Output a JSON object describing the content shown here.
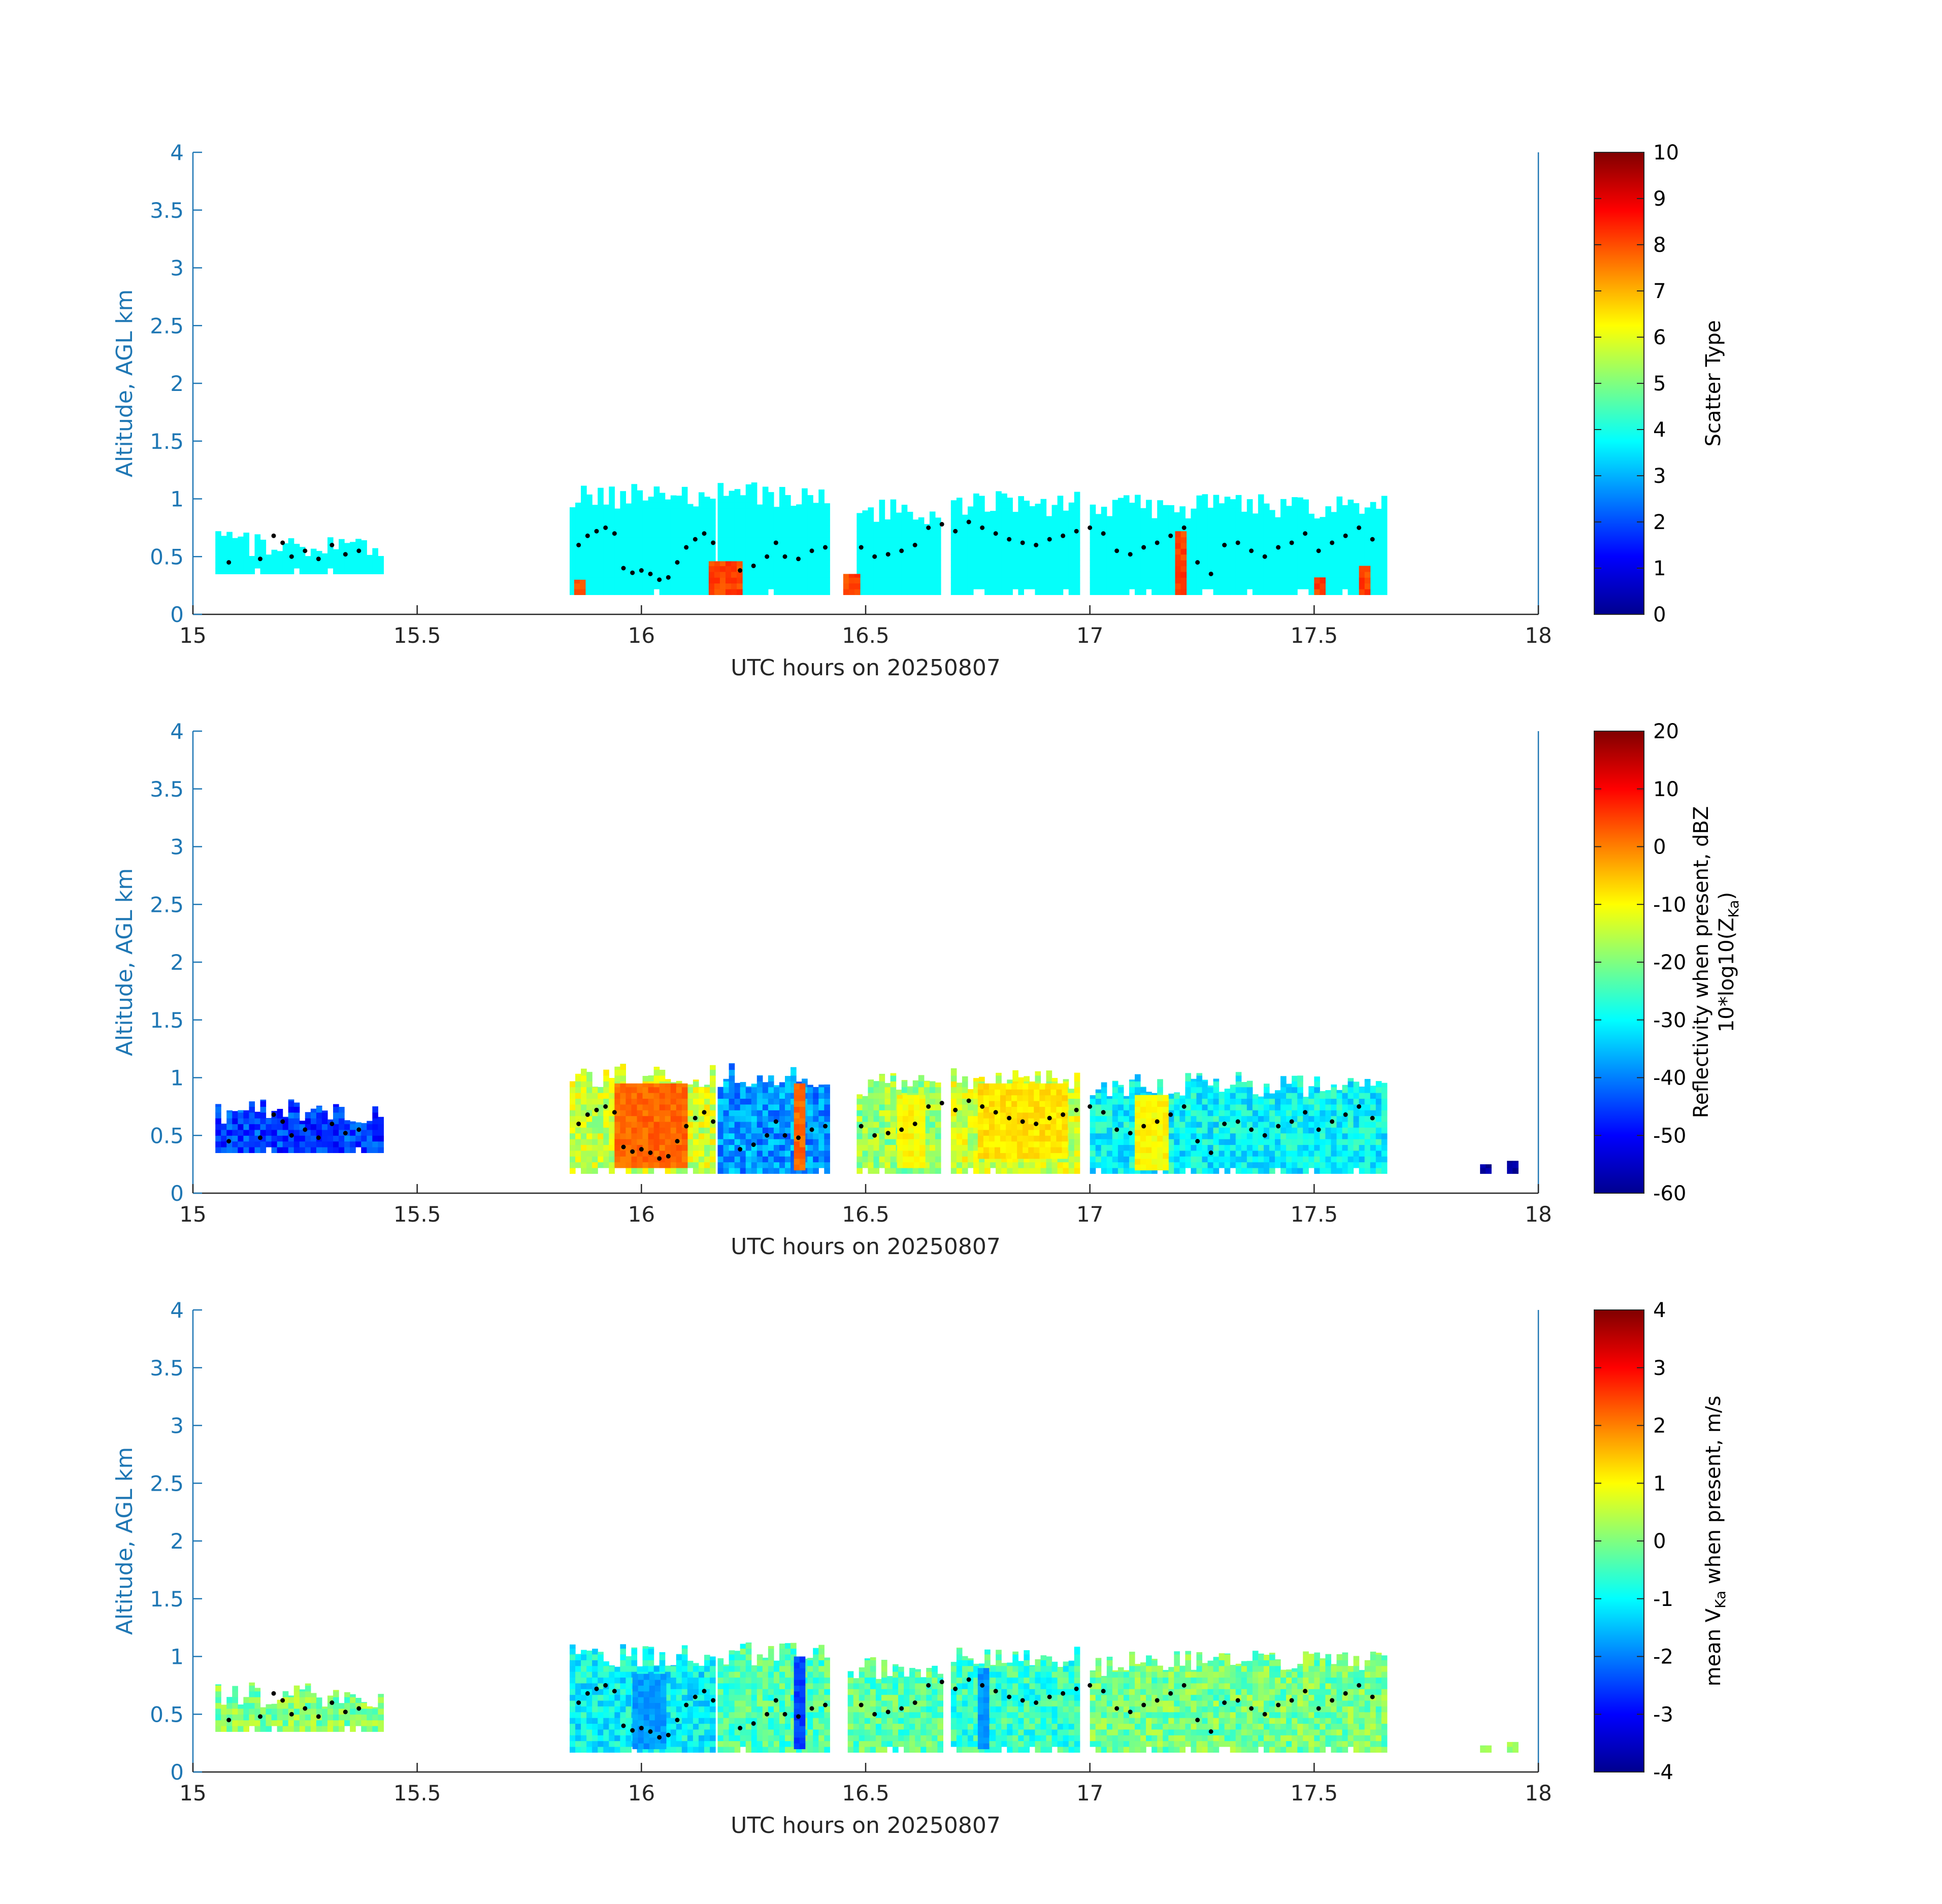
{
  "figure": {
    "xlabel_prefix": "UTC hours on",
    "date": "20250807",
    "ylabel": "Altitude, AGL km",
    "x_ticks": [
      "15",
      "15.5",
      "16",
      "16.5",
      "17",
      "17.5",
      "18"
    ],
    "y_ticks": [
      "0",
      "0.5",
      "1",
      "1.5",
      "2",
      "2.5",
      "3",
      "3.5",
      "4"
    ],
    "colors": {
      "y_axis": "#1f77b4",
      "x_axis": "#262626",
      "dots": "#000000"
    }
  },
  "chart_data": [
    {
      "type": "heatmap",
      "xlabel": "UTC hours on 20250807",
      "ylabel": "Altitude, AGL km",
      "xlim": [
        15,
        18
      ],
      "ylim": [
        0,
        4
      ],
      "colorbar": {
        "label": "Scatter Type",
        "range": [
          0,
          10
        ],
        "ticks": [
          "0",
          "1",
          "2",
          "3",
          "4",
          "5",
          "6",
          "7",
          "8",
          "9",
          "10"
        ]
      },
      "segments": [
        {
          "x": [
            15.05,
            15.42
          ],
          "base": 0.35,
          "top": 0.72,
          "value": 3.8
        },
        {
          "x": [
            15.84,
            16.17
          ],
          "base": 0.17,
          "top": 1.13,
          "value": 3.8
        },
        {
          "x": [
            16.17,
            16.42
          ],
          "base": 0.17,
          "top": 1.15,
          "value": 3.8
        },
        {
          "x": [
            16.48,
            16.67
          ],
          "base": 0.17,
          "top": 1.0,
          "value": 3.8
        },
        {
          "x": [
            16.69,
            16.98
          ],
          "base": 0.17,
          "top": 1.07,
          "value": 3.8
        },
        {
          "x": [
            17.0,
            17.66
          ],
          "base": 0.17,
          "top": 1.05,
          "value": 3.8
        }
      ],
      "accents": [
        {
          "x": [
            15.85,
            15.87
          ],
          "base": 0.17,
          "top": 0.3,
          "value": 8.1
        },
        {
          "x": [
            16.15,
            16.22
          ],
          "base": 0.17,
          "top": 0.46,
          "value": 8.1
        },
        {
          "x": [
            16.45,
            16.49
          ],
          "base": 0.17,
          "top": 0.35,
          "value": 8.1
        },
        {
          "x": [
            17.19,
            17.21
          ],
          "base": 0.17,
          "top": 0.72,
          "value": 8.1
        },
        {
          "x": [
            17.5,
            17.52
          ],
          "base": 0.17,
          "top": 0.32,
          "value": 8.1
        },
        {
          "x": [
            17.6,
            17.62
          ],
          "base": 0.17,
          "top": 0.42,
          "value": 8.1
        }
      ],
      "cloud_top_dots": {
        "x": [
          15.08,
          15.15,
          15.18,
          15.2,
          15.22,
          15.25,
          15.28,
          15.31,
          15.34,
          15.37,
          15.86,
          15.88,
          15.9,
          15.92,
          15.94,
          15.96,
          15.98,
          16.0,
          16.02,
          16.04,
          16.06,
          16.08,
          16.1,
          16.12,
          16.14,
          16.16,
          16.22,
          16.25,
          16.28,
          16.3,
          16.32,
          16.35,
          16.38,
          16.41,
          16.49,
          16.52,
          16.55,
          16.58,
          16.61,
          16.64,
          16.67,
          16.7,
          16.73,
          16.76,
          16.79,
          16.82,
          16.85,
          16.88,
          16.91,
          16.94,
          16.97,
          17.0,
          17.03,
          17.06,
          17.09,
          17.12,
          17.15,
          17.18,
          17.21,
          17.24,
          17.27,
          17.3,
          17.33,
          17.36,
          17.39,
          17.42,
          17.45,
          17.48,
          17.51,
          17.54,
          17.57,
          17.6,
          17.63
        ],
        "y": [
          0.45,
          0.48,
          0.68,
          0.62,
          0.5,
          0.55,
          0.48,
          0.6,
          0.52,
          0.55,
          0.6,
          0.68,
          0.72,
          0.75,
          0.7,
          0.4,
          0.36,
          0.38,
          0.35,
          0.3,
          0.32,
          0.45,
          0.58,
          0.65,
          0.7,
          0.62,
          0.38,
          0.42,
          0.5,
          0.62,
          0.5,
          0.48,
          0.55,
          0.58,
          0.58,
          0.5,
          0.52,
          0.55,
          0.6,
          0.75,
          0.78,
          0.72,
          0.8,
          0.75,
          0.7,
          0.65,
          0.62,
          0.6,
          0.65,
          0.68,
          0.72,
          0.75,
          0.7,
          0.55,
          0.52,
          0.58,
          0.62,
          0.68,
          0.75,
          0.45,
          0.35,
          0.6,
          0.62,
          0.55,
          0.5,
          0.58,
          0.62,
          0.7,
          0.55,
          0.62,
          0.68,
          0.75,
          0.65
        ]
      }
    },
    {
      "type": "heatmap",
      "xlabel": "UTC hours on 20250807",
      "ylabel": "Altitude, AGL km",
      "xlim": [
        15,
        18
      ],
      "ylim": [
        0,
        4
      ],
      "colorbar": {
        "label": "Reflectivity when present, dBZ",
        "label_line2_prefix": "10*log10(Z",
        "label_line2_sub": "Ka",
        "label_line2_suffix": ")",
        "range": [
          -60,
          20
        ],
        "ticks": [
          "-60",
          "-50",
          "-40",
          "-30",
          "-20",
          "-10",
          "0",
          "10",
          "20"
        ]
      },
      "segments": [
        {
          "x": [
            15.05,
            15.42
          ],
          "base": 0.35,
          "top": 0.82,
          "value": -45
        },
        {
          "x": [
            15.84,
            16.17
          ],
          "base": 0.17,
          "top": 1.13,
          "value": -14
        },
        {
          "x": [
            16.17,
            16.42
          ],
          "base": 0.17,
          "top": 1.13,
          "value": -38
        },
        {
          "x": [
            16.48,
            16.67
          ],
          "base": 0.17,
          "top": 1.05,
          "value": -18
        },
        {
          "x": [
            16.69,
            16.98
          ],
          "base": 0.17,
          "top": 1.1,
          "value": -14
        },
        {
          "x": [
            17.0,
            17.66
          ],
          "base": 0.17,
          "top": 1.05,
          "value": -30
        }
      ],
      "accents": [
        {
          "x": [
            15.94,
            16.1
          ],
          "base": 0.22,
          "top": 0.95,
          "value": 2
        },
        {
          "x": [
            16.34,
            16.37
          ],
          "base": 0.2,
          "top": 0.95,
          "value": 2
        },
        {
          "x": [
            16.57,
            16.63
          ],
          "base": 0.22,
          "top": 0.85,
          "value": -10
        },
        {
          "x": [
            16.75,
            16.95
          ],
          "base": 0.3,
          "top": 0.95,
          "value": -8
        },
        {
          "x": [
            17.1,
            17.18
          ],
          "base": 0.2,
          "top": 0.85,
          "value": -10
        },
        {
          "x": [
            17.87,
            17.89
          ],
          "base": 0.17,
          "top": 0.25,
          "value": -58
        },
        {
          "x": [
            17.93,
            17.95
          ],
          "base": 0.17,
          "top": 0.28,
          "value": -58
        }
      ],
      "cloud_top_dots": {
        "x": [
          15.08,
          15.15,
          15.18,
          15.2,
          15.22,
          15.25,
          15.28,
          15.31,
          15.34,
          15.37,
          15.86,
          15.88,
          15.9,
          15.92,
          15.94,
          15.96,
          15.98,
          16.0,
          16.02,
          16.04,
          16.06,
          16.08,
          16.1,
          16.12,
          16.14,
          16.16,
          16.22,
          16.25,
          16.28,
          16.3,
          16.32,
          16.35,
          16.38,
          16.41,
          16.49,
          16.52,
          16.55,
          16.58,
          16.61,
          16.64,
          16.67,
          16.7,
          16.73,
          16.76,
          16.79,
          16.82,
          16.85,
          16.88,
          16.91,
          16.94,
          16.97,
          17.0,
          17.03,
          17.06,
          17.09,
          17.12,
          17.15,
          17.18,
          17.21,
          17.24,
          17.27,
          17.3,
          17.33,
          17.36,
          17.39,
          17.42,
          17.45,
          17.48,
          17.51,
          17.54,
          17.57,
          17.6,
          17.63
        ],
        "y": [
          0.45,
          0.48,
          0.68,
          0.62,
          0.5,
          0.55,
          0.48,
          0.6,
          0.52,
          0.55,
          0.6,
          0.68,
          0.72,
          0.75,
          0.7,
          0.4,
          0.36,
          0.38,
          0.35,
          0.3,
          0.32,
          0.45,
          0.58,
          0.65,
          0.7,
          0.62,
          0.38,
          0.42,
          0.5,
          0.62,
          0.5,
          0.48,
          0.55,
          0.58,
          0.58,
          0.5,
          0.52,
          0.55,
          0.6,
          0.75,
          0.78,
          0.72,
          0.8,
          0.75,
          0.7,
          0.65,
          0.62,
          0.6,
          0.65,
          0.68,
          0.72,
          0.75,
          0.7,
          0.55,
          0.52,
          0.58,
          0.62,
          0.68,
          0.75,
          0.45,
          0.35,
          0.6,
          0.62,
          0.55,
          0.5,
          0.58,
          0.62,
          0.7,
          0.55,
          0.62,
          0.68,
          0.75,
          0.65
        ]
      }
    },
    {
      "type": "heatmap",
      "xlabel": "UTC hours on 20250807",
      "ylabel": "Altitude, AGL km",
      "xlim": [
        15,
        18
      ],
      "ylim": [
        0,
        4
      ],
      "colorbar": {
        "label_prefix": "mean V",
        "label_sub": "Ka",
        "label_suffix": " when present, m/s",
        "range": [
          -4,
          4
        ],
        "ticks": [
          "-4",
          "-3",
          "-2",
          "-1",
          "0",
          "1",
          "2",
          "3",
          "4"
        ]
      },
      "segments": [
        {
          "x": [
            15.05,
            15.42
          ],
          "base": 0.35,
          "top": 0.78,
          "value": 0.0
        },
        {
          "x": [
            15.84,
            16.17
          ],
          "base": 0.17,
          "top": 1.13,
          "value": -1.0
        },
        {
          "x": [
            16.17,
            16.42
          ],
          "base": 0.17,
          "top": 1.13,
          "value": -0.4
        },
        {
          "x": [
            16.46,
            16.67
          ],
          "base": 0.17,
          "top": 1.0,
          "value": -0.3
        },
        {
          "x": [
            16.69,
            16.98
          ],
          "base": 0.17,
          "top": 1.1,
          "value": -0.6
        },
        {
          "x": [
            17.0,
            17.66
          ],
          "base": 0.17,
          "top": 1.05,
          "value": -0.1
        }
      ],
      "accents": [
        {
          "x": [
            15.98,
            16.06
          ],
          "base": 0.2,
          "top": 0.85,
          "value": -1.8
        },
        {
          "x": [
            16.34,
            16.37
          ],
          "base": 0.2,
          "top": 1.0,
          "value": -2.5
        },
        {
          "x": [
            16.75,
            16.78
          ],
          "base": 0.2,
          "top": 0.9,
          "value": -1.8
        },
        {
          "x": [
            17.87,
            17.89
          ],
          "base": 0.17,
          "top": 0.23,
          "value": 0.2
        },
        {
          "x": [
            17.93,
            17.95
          ],
          "base": 0.17,
          "top": 0.26,
          "value": 0.2
        }
      ],
      "cloud_top_dots": {
        "x": [
          15.08,
          15.15,
          15.18,
          15.2,
          15.22,
          15.25,
          15.28,
          15.31,
          15.34,
          15.37,
          15.86,
          15.88,
          15.9,
          15.92,
          15.94,
          15.96,
          15.98,
          16.0,
          16.02,
          16.04,
          16.06,
          16.08,
          16.1,
          16.12,
          16.14,
          16.16,
          16.22,
          16.25,
          16.28,
          16.3,
          16.32,
          16.35,
          16.38,
          16.41,
          16.49,
          16.52,
          16.55,
          16.58,
          16.61,
          16.64,
          16.67,
          16.7,
          16.73,
          16.76,
          16.79,
          16.82,
          16.85,
          16.88,
          16.91,
          16.94,
          16.97,
          17.0,
          17.03,
          17.06,
          17.09,
          17.12,
          17.15,
          17.18,
          17.21,
          17.24,
          17.27,
          17.3,
          17.33,
          17.36,
          17.39,
          17.42,
          17.45,
          17.48,
          17.51,
          17.54,
          17.57,
          17.6,
          17.63
        ],
        "y": [
          0.45,
          0.48,
          0.68,
          0.62,
          0.5,
          0.55,
          0.48,
          0.6,
          0.52,
          0.55,
          0.6,
          0.68,
          0.72,
          0.75,
          0.7,
          0.4,
          0.36,
          0.38,
          0.35,
          0.3,
          0.32,
          0.45,
          0.58,
          0.65,
          0.7,
          0.62,
          0.38,
          0.42,
          0.5,
          0.62,
          0.5,
          0.48,
          0.55,
          0.58,
          0.58,
          0.5,
          0.52,
          0.55,
          0.6,
          0.75,
          0.78,
          0.72,
          0.8,
          0.75,
          0.7,
          0.65,
          0.62,
          0.6,
          0.65,
          0.68,
          0.72,
          0.75,
          0.7,
          0.55,
          0.52,
          0.58,
          0.62,
          0.68,
          0.75,
          0.45,
          0.35,
          0.6,
          0.62,
          0.55,
          0.5,
          0.58,
          0.62,
          0.7,
          0.55,
          0.62,
          0.68,
          0.75,
          0.65
        ]
      }
    }
  ]
}
